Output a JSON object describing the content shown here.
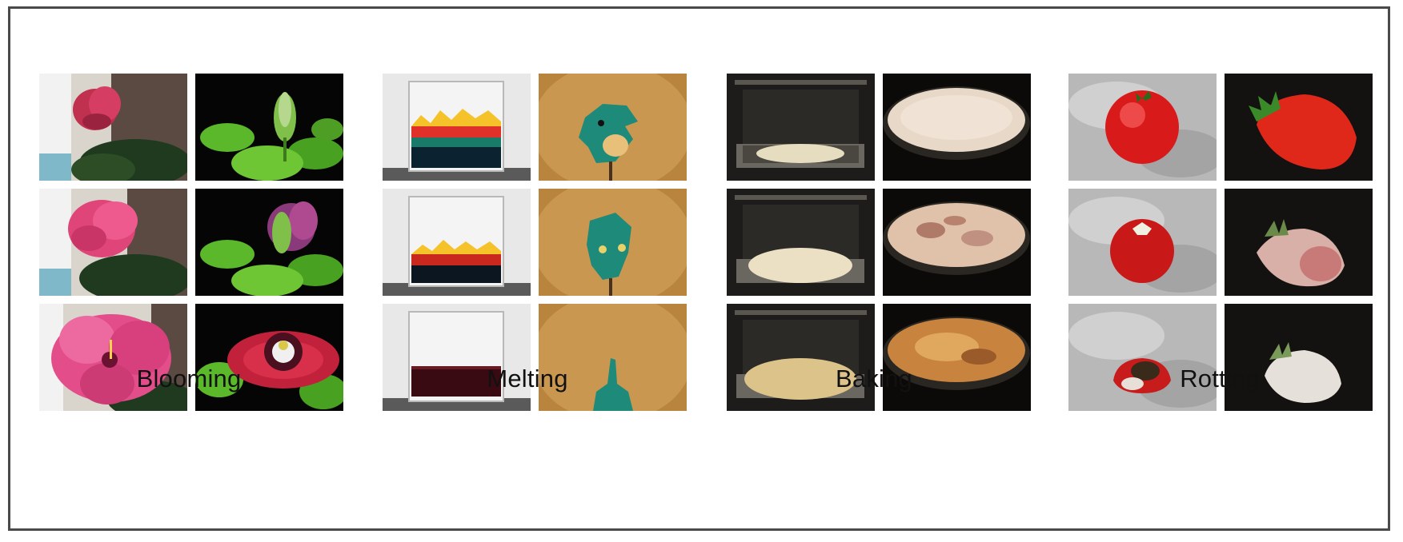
{
  "groups": [
    {
      "key": "blooming",
      "label": "Blooming"
    },
    {
      "key": "melting",
      "label": "Melting"
    },
    {
      "key": "baking",
      "label": "Baking"
    },
    {
      "key": "rotting",
      "label": "Rotting"
    }
  ]
}
